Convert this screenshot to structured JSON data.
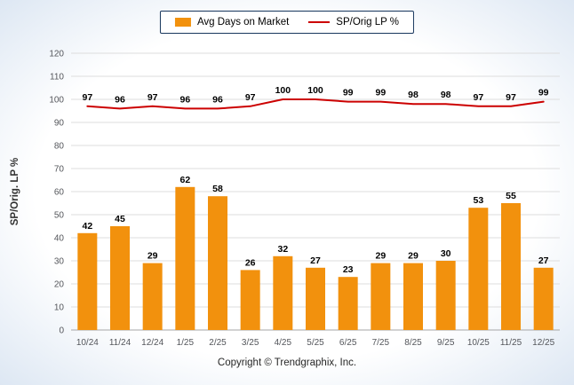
{
  "legend": {
    "bar_label": "Avg Days on Market",
    "line_label": "SP/Orig LP %"
  },
  "footer": {
    "copyright": "Copyright © Trendgraphix, Inc."
  },
  "colors": {
    "bar": "#F2910D",
    "line": "#CC0000",
    "grid": "#DDDDDD",
    "zero_axis": "#A6A6A6",
    "axis_text": "#54565B",
    "value_label": "#000000",
    "ylabel_text": "#333333",
    "legend_border": "#17365D"
  },
  "chart_data": {
    "type": "bar",
    "categories": [
      "10/24",
      "11/24",
      "12/24",
      "1/25",
      "2/25",
      "3/25",
      "4/25",
      "5/25",
      "6/25",
      "7/25",
      "8/25",
      "9/25",
      "10/25",
      "11/25",
      "12/25"
    ],
    "series": [
      {
        "name": "Avg Days on Market",
        "type": "bar",
        "color": "#F2910D",
        "values": [
          42,
          45,
          29,
          62,
          58,
          26,
          32,
          27,
          23,
          29,
          29,
          30,
          53,
          55,
          27
        ]
      },
      {
        "name": "SP/Orig LP %",
        "type": "line",
        "color": "#CC0000",
        "values": [
          97,
          96,
          97,
          96,
          96,
          97,
          100,
          100,
          99,
          99,
          98,
          98,
          97,
          97,
          99
        ]
      }
    ],
    "title": "",
    "xlabel": "",
    "ylabel": "SP/Orig. LP %",
    "ylim": [
      0,
      120
    ],
    "ytick_step": 10,
    "grid": true,
    "legend_position": "top",
    "data_labels": true
  }
}
